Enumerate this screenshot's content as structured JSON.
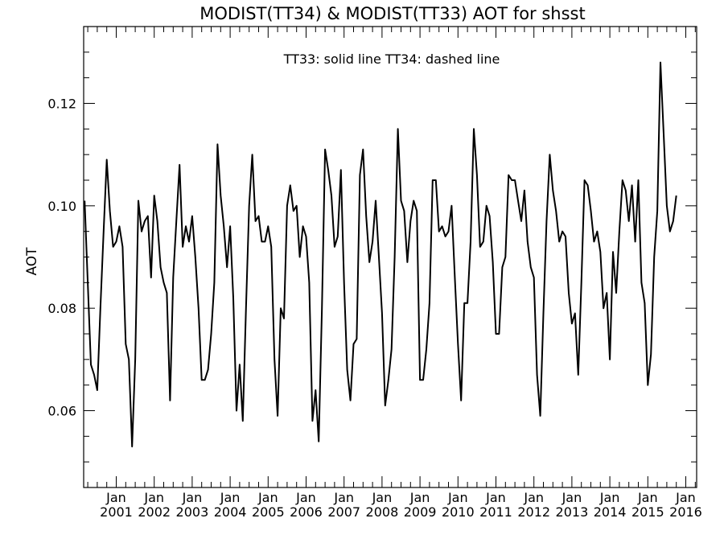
{
  "chart_data": {
    "type": "line",
    "title": "MODIST(TT34) & MODIST(TT33)  AOT for shsst",
    "annotation": "TT33: solid line   TT34: dashed line",
    "xlabel": "",
    "ylabel": "AOT",
    "ylim": [
      0.045,
      0.135
    ],
    "y_ticks": [
      0.06,
      0.08,
      0.1,
      0.12
    ],
    "y_tick_labels": [
      "0.06",
      "0.08",
      "0.10",
      "0.12"
    ],
    "x_start": "2000-03",
    "x_end": "2016-01",
    "x_tick_labels": [
      {
        "month": "Jan",
        "year": "2001"
      },
      {
        "month": "Jan",
        "year": "2002"
      },
      {
        "month": "Jan",
        "year": "2003"
      },
      {
        "month": "Jan",
        "year": "2004"
      },
      {
        "month": "Jan",
        "year": "2005"
      },
      {
        "month": "Jan",
        "year": "2006"
      },
      {
        "month": "Jan",
        "year": "2007"
      },
      {
        "month": "Jan",
        "year": "2008"
      },
      {
        "month": "Jan",
        "year": "2009"
      },
      {
        "month": "Jan",
        "year": "2010"
      },
      {
        "month": "Jan",
        "year": "2011"
      },
      {
        "month": "Jan",
        "year": "2012"
      },
      {
        "month": "Jan",
        "year": "2013"
      },
      {
        "month": "Jan",
        "year": "2014"
      },
      {
        "month": "Jan",
        "year": "2015"
      },
      {
        "month": "Jan",
        "year": "2016"
      }
    ],
    "grid": false,
    "series": [
      {
        "line_style": "solid",
        "start": "2000-03",
        "values": [
          0.101,
          0.085,
          0.069,
          0.067,
          0.064,
          0.08,
          0.095,
          0.109,
          0.099,
          0.092,
          0.093,
          0.096,
          0.092,
          0.073,
          0.07,
          0.053,
          0.07,
          0.101,
          0.095,
          0.097,
          0.098,
          0.086,
          0.102,
          0.097,
          0.088,
          0.085,
          0.083,
          0.062,
          0.086,
          0.097,
          0.108,
          0.092,
          0.096,
          0.093,
          0.098,
          0.09,
          0.08,
          0.066,
          0.066,
          0.068,
          0.075,
          0.085,
          0.112,
          0.102,
          0.096,
          0.088,
          0.096,
          0.082,
          0.06,
          0.069,
          0.058,
          0.08,
          0.1,
          0.11,
          0.097,
          0.098,
          0.093,
          0.093,
          0.096,
          0.092,
          0.07,
          0.059,
          0.08,
          0.078,
          0.1,
          0.104,
          0.099,
          0.1,
          0.09,
          0.096,
          0.094,
          0.085,
          0.058,
          0.064,
          0.054,
          0.08,
          0.111,
          0.107,
          0.102,
          0.092,
          0.094,
          0.107,
          0.085,
          0.068,
          0.062,
          0.073,
          0.074,
          0.106,
          0.111,
          0.098,
          0.089,
          0.093,
          0.101,
          0.09,
          0.079,
          0.061,
          0.066,
          0.072,
          0.09,
          0.115,
          0.101,
          0.099,
          0.089,
          0.097,
          0.101,
          0.099,
          0.066,
          0.066,
          0.072,
          0.081,
          0.105,
          0.105,
          0.095,
          0.096,
          0.094,
          0.095,
          0.1,
          0.086,
          0.073,
          0.062,
          0.081,
          0.081,
          0.093,
          0.115,
          0.106,
          0.092,
          0.093,
          0.1,
          0.098,
          0.089,
          0.075,
          0.075,
          0.088,
          0.09,
          0.106,
          0.105,
          0.105,
          0.101,
          0.097,
          0.103,
          0.093,
          0.088,
          0.086,
          0.067,
          0.059,
          0.079,
          0.097,
          0.11,
          0.103,
          0.099,
          0.093,
          0.095,
          0.094,
          0.083,
          0.077,
          0.079,
          0.067,
          0.085,
          0.105,
          0.104,
          0.099,
          0.093,
          0.095,
          0.091,
          0.08,
          0.083,
          0.07,
          0.091,
          0.083,
          0.095,
          0.105,
          0.103,
          0.097,
          0.104,
          0.093,
          0.105,
          0.085,
          0.081,
          0.065,
          0.071,
          0.09,
          0.099,
          0.128,
          0.114,
          0.1,
          0.095,
          0.097,
          0.102
        ]
      }
    ]
  }
}
